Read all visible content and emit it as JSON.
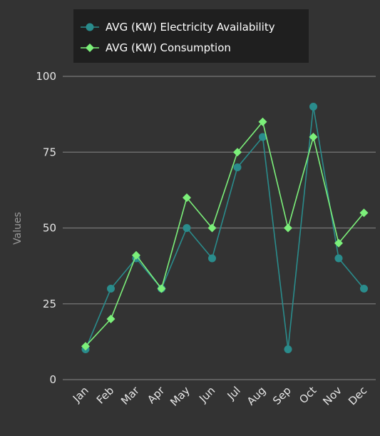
{
  "chart_data": {
    "type": "line",
    "categories": [
      "Jan",
      "Feb",
      "Mar",
      "Apr",
      "May",
      "Jun",
      "Jul",
      "Aug",
      "Sep",
      "Oct",
      "Nov",
      "Dec"
    ],
    "series": [
      {
        "name": "AVG (KW) Electricity Availability",
        "values": [
          10,
          30,
          40,
          30,
          50,
          40,
          70,
          80,
          10,
          90,
          40,
          30
        ],
        "color": "#2a8c8c",
        "marker": "circle"
      },
      {
        "name": "AVG (KW) Consumption",
        "values": [
          11,
          20,
          41,
          30,
          60,
          50,
          75,
          85,
          50,
          80,
          45,
          55
        ],
        "color": "#7cf07a",
        "marker": "diamond"
      }
    ],
    "ylabel": "Values",
    "xlabel": "",
    "ylim": [
      0,
      100
    ],
    "yticks": [
      0,
      25,
      50,
      75,
      100
    ],
    "grid": true,
    "legend": "top-left"
  },
  "colors": {
    "background": "#333333",
    "grid": "#777777",
    "legend_bg": "#1f1f1f"
  }
}
